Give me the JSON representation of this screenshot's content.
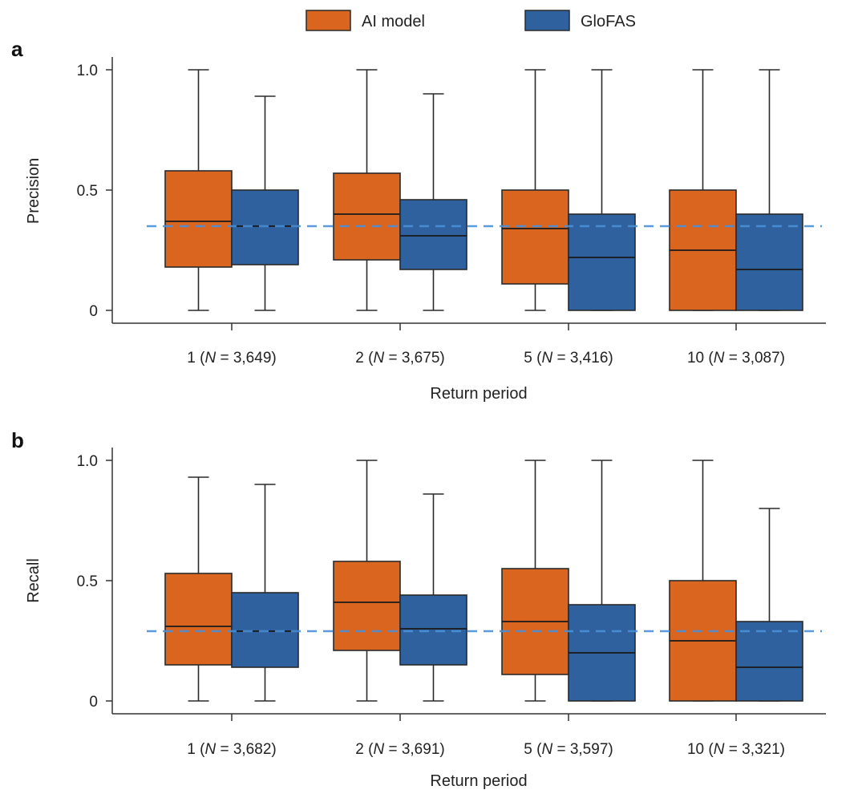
{
  "legend": [
    {
      "name": "AI model",
      "color": "#D9651F"
    },
    {
      "name": "GloFAS",
      "color": "#2F619E"
    }
  ],
  "colors": {
    "reference_line": "#4A90D9",
    "axis": "#333333",
    "edge": "#2a2a2a"
  },
  "chart_data": [
    {
      "type": "box",
      "panel_label": "a",
      "ylabel": "Precision",
      "xlabel": "Return period",
      "ylim": [
        0,
        1.05
      ],
      "yticks": [
        0,
        0.5,
        1.0
      ],
      "ytick_labels": [
        "0",
        "0.5",
        "1.0"
      ],
      "reference_line": 0.35,
      "groups": [
        {
          "label": "1",
          "n": "3,649"
        },
        {
          "label": "2",
          "n": "3,675"
        },
        {
          "label": "5",
          "n": "3,416"
        },
        {
          "label": "10",
          "n": "3,087"
        }
      ],
      "series": [
        {
          "name": "AI model",
          "boxes": [
            {
              "min": 0,
              "q1": 0.18,
              "median": 0.37,
              "q3": 0.58,
              "max": 1.0
            },
            {
              "min": 0,
              "q1": 0.21,
              "median": 0.4,
              "q3": 0.57,
              "max": 1.0
            },
            {
              "min": 0,
              "q1": 0.11,
              "median": 0.34,
              "q3": 0.5,
              "max": 1.0
            },
            {
              "min": 0,
              "q1": 0.0,
              "median": 0.25,
              "q3": 0.5,
              "max": 1.0
            }
          ]
        },
        {
          "name": "GloFAS",
          "boxes": [
            {
              "min": 0,
              "q1": 0.19,
              "median": 0.35,
              "q3": 0.5,
              "max": 0.89
            },
            {
              "min": 0,
              "q1": 0.17,
              "median": 0.31,
              "q3": 0.46,
              "max": 0.9
            },
            {
              "min": 0,
              "q1": 0.0,
              "median": 0.22,
              "q3": 0.4,
              "max": 1.0
            },
            {
              "min": 0,
              "q1": 0.0,
              "median": 0.17,
              "q3": 0.4,
              "max": 1.0
            }
          ]
        }
      ]
    },
    {
      "type": "box",
      "panel_label": "b",
      "ylabel": "Recall",
      "xlabel": "Return period",
      "ylim": [
        0,
        1.05
      ],
      "yticks": [
        0,
        0.5,
        1.0
      ],
      "ytick_labels": [
        "0",
        "0.5",
        "1.0"
      ],
      "reference_line": 0.29,
      "groups": [
        {
          "label": "1",
          "n": "3,682"
        },
        {
          "label": "2",
          "n": "3,691"
        },
        {
          "label": "5",
          "n": "3,597"
        },
        {
          "label": "10",
          "n": "3,321"
        }
      ],
      "series": [
        {
          "name": "AI model",
          "boxes": [
            {
              "min": 0,
              "q1": 0.15,
              "median": 0.31,
              "q3": 0.53,
              "max": 0.93
            },
            {
              "min": 0,
              "q1": 0.21,
              "median": 0.41,
              "q3": 0.58,
              "max": 1.0
            },
            {
              "min": 0,
              "q1": 0.11,
              "median": 0.33,
              "q3": 0.55,
              "max": 1.0
            },
            {
              "min": 0,
              "q1": 0.0,
              "median": 0.25,
              "q3": 0.5,
              "max": 1.0
            }
          ]
        },
        {
          "name": "GloFAS",
          "boxes": [
            {
              "min": 0,
              "q1": 0.14,
              "median": 0.29,
              "q3": 0.45,
              "max": 0.9
            },
            {
              "min": 0,
              "q1": 0.15,
              "median": 0.3,
              "q3": 0.44,
              "max": 0.86
            },
            {
              "min": 0,
              "q1": 0.0,
              "median": 0.2,
              "q3": 0.4,
              "max": 1.0
            },
            {
              "min": 0,
              "q1": 0.0,
              "median": 0.14,
              "q3": 0.33,
              "max": 0.8
            }
          ]
        }
      ]
    }
  ]
}
